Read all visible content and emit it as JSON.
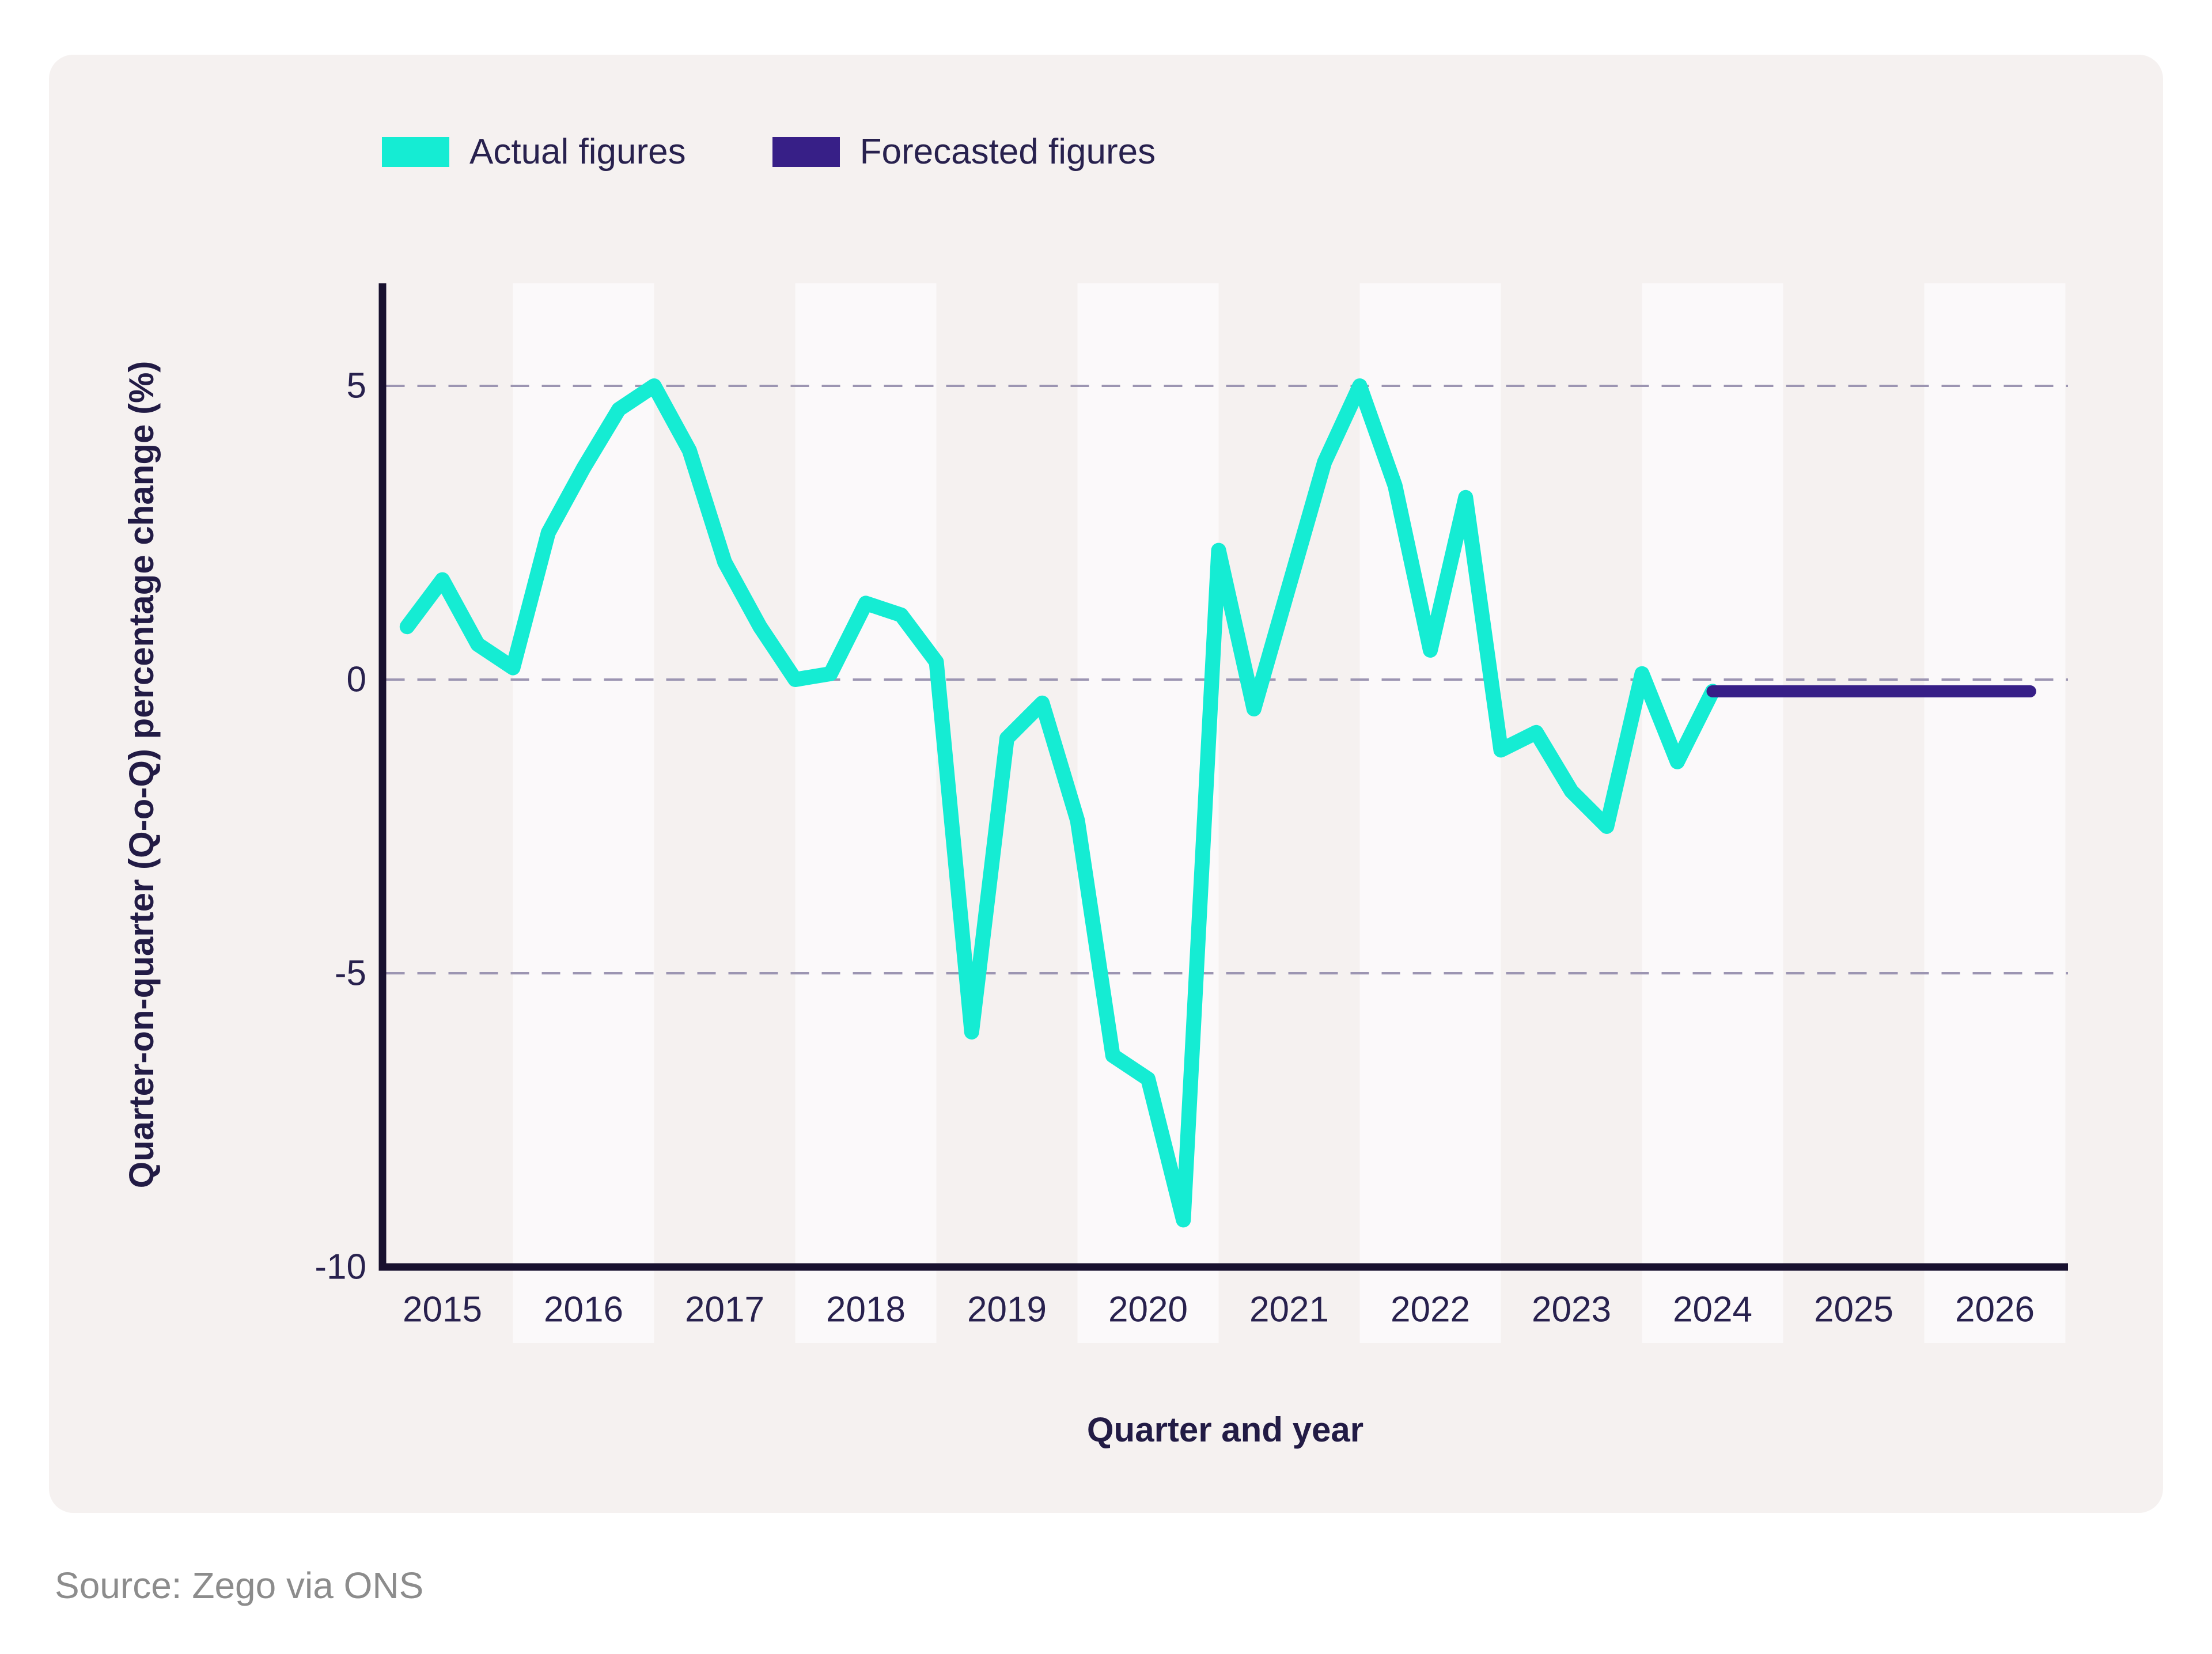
{
  "colors": {
    "page_bg": "#FFFFFF",
    "card_bg": "#F5F1F0",
    "band": "#FBF9FA",
    "grid": "#9C95B2",
    "axis": "#18112F",
    "tick_text": "#28214E",
    "title_text": "#221B45",
    "source_text": "#8C8C8C",
    "actual": "#15ECD3",
    "forecast": "#371F87"
  },
  "legend": {
    "items": [
      {
        "label": "Actual figures",
        "color": "#15ECD3"
      },
      {
        "label": "Forecasted figures",
        "color": "#371F87"
      }
    ]
  },
  "source_text": "Source: Zego via ONS",
  "chart_data": {
    "type": "line",
    "title": "",
    "xlabel": "Quarter and year",
    "ylabel": "Quarter-on-quarter (Q-o-Q) percentage change (%)",
    "x_tick_labels": [
      "2015",
      "2016",
      "2017",
      "2018",
      "2019",
      "2020",
      "2021",
      "2022",
      "2023",
      "2024",
      "2025",
      "2026"
    ],
    "shaded_years": [
      2016,
      2018,
      2020,
      2022,
      2024,
      2026
    ],
    "y_ticks": [
      5,
      0,
      -5,
      -10
    ],
    "ylim": [
      -10,
      6.75
    ],
    "grid": "horizontal-dashed",
    "legend_position": "top-left",
    "series": [
      {
        "name": "Actual figures",
        "color": "#15ECD3",
        "points": [
          [
            2015.25,
            0.9
          ],
          [
            2015.5,
            1.7
          ],
          [
            2015.75,
            0.6
          ],
          [
            2016.0,
            0.2
          ],
          [
            2016.25,
            2.5
          ],
          [
            2016.5,
            3.6
          ],
          [
            2016.75,
            4.6
          ],
          [
            2017.0,
            5.0
          ],
          [
            2017.25,
            3.9
          ],
          [
            2017.5,
            2.0
          ],
          [
            2017.75,
            0.9
          ],
          [
            2018.0,
            0.0
          ],
          [
            2018.25,
            0.1
          ],
          [
            2018.5,
            1.3
          ],
          [
            2018.75,
            1.1
          ],
          [
            2019.0,
            0.3
          ],
          [
            2019.25,
            -6.0
          ],
          [
            2019.5,
            -1.0
          ],
          [
            2019.75,
            -0.4
          ],
          [
            2020.0,
            -2.4
          ],
          [
            2020.25,
            -6.4
          ],
          [
            2020.5,
            -6.8
          ],
          [
            2020.75,
            -9.2
          ],
          [
            2021.0,
            2.2
          ],
          [
            2021.25,
            -0.5
          ],
          [
            2021.5,
            1.6
          ],
          [
            2021.75,
            3.7
          ],
          [
            2022.0,
            5.0
          ],
          [
            2022.25,
            3.3
          ],
          [
            2022.5,
            0.5
          ],
          [
            2022.75,
            3.1
          ],
          [
            2023.0,
            -1.2
          ],
          [
            2023.25,
            -0.9
          ],
          [
            2023.5,
            -1.9
          ],
          [
            2023.75,
            -2.5
          ],
          [
            2024.0,
            0.1
          ],
          [
            2024.25,
            -1.4
          ],
          [
            2024.5,
            -0.2
          ]
        ]
      },
      {
        "name": "Forecasted figures",
        "color": "#371F87",
        "points": [
          [
            2024.5,
            -0.2
          ],
          [
            2024.75,
            -0.2
          ],
          [
            2025.0,
            -0.2
          ],
          [
            2025.25,
            -0.2
          ],
          [
            2025.5,
            -0.2
          ],
          [
            2025.75,
            -0.2
          ],
          [
            2026.0,
            -0.2
          ],
          [
            2026.25,
            -0.2
          ],
          [
            2026.5,
            -0.2
          ],
          [
            2026.75,
            -0.2
          ]
        ]
      }
    ]
  }
}
